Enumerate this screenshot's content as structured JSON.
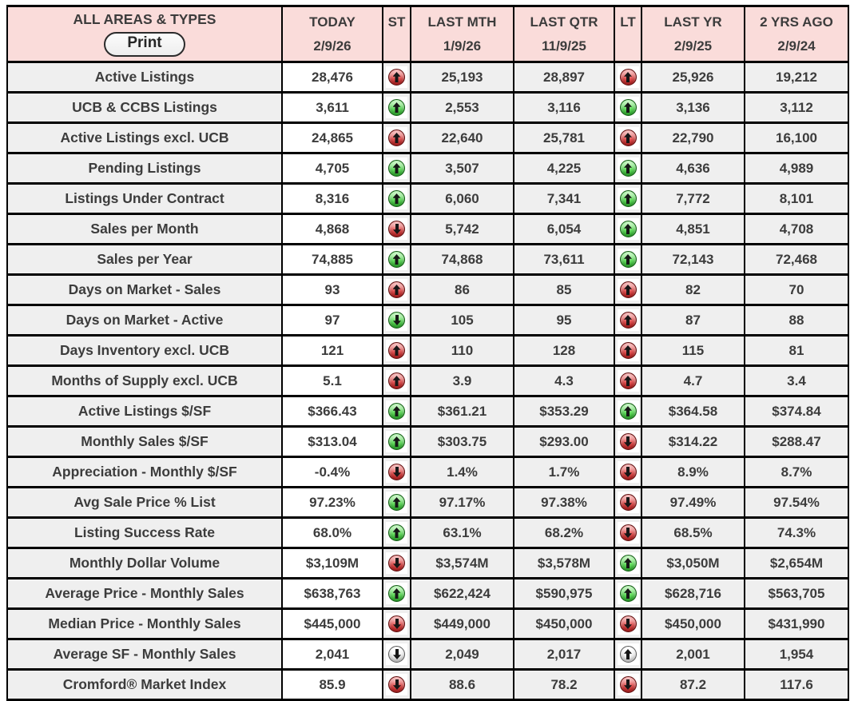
{
  "header": {
    "area_label": "ALL AREAS & TYPES",
    "print_label": "Print",
    "columns": [
      {
        "label": "TODAY",
        "date": "2/9/26"
      },
      {
        "label": "ST",
        "date": ""
      },
      {
        "label": "LAST MTH",
        "date": "1/9/26"
      },
      {
        "label": "LAST QTR",
        "date": "11/9/25"
      },
      {
        "label": "LT",
        "date": ""
      },
      {
        "label": "LAST YR",
        "date": "2/9/25"
      },
      {
        "label": "2 YRS AGO",
        "date": "2/9/24"
      }
    ]
  },
  "colors": {
    "header_pink": "#fadcda",
    "cell_gray": "#efefef",
    "today_white": "#ffffff",
    "border_black": "#000000",
    "text_dark": "#3c3c3c",
    "arrow_up_bad_red": "#cd2c2c",
    "arrow_up_good_green": "#3ec43c",
    "arrow_neutral_white": "#f2f2f2"
  },
  "rows": [
    {
      "label": "Active Listings",
      "today": "28,476",
      "st": "red-up",
      "last_mth": "25,193",
      "last_qtr": "28,897",
      "lt": "red-up",
      "last_yr": "25,926",
      "two_yrs_ago": "19,212"
    },
    {
      "label": "UCB & CCBS Listings",
      "today": "3,611",
      "st": "green-up",
      "last_mth": "2,553",
      "last_qtr": "3,116",
      "lt": "green-up",
      "last_yr": "3,136",
      "two_yrs_ago": "3,112"
    },
    {
      "label": "Active Listings excl. UCB",
      "today": "24,865",
      "st": "red-up",
      "last_mth": "22,640",
      "last_qtr": "25,781",
      "lt": "red-up",
      "last_yr": "22,790",
      "two_yrs_ago": "16,100"
    },
    {
      "label": "Pending Listings",
      "today": "4,705",
      "st": "green-up",
      "last_mth": "3,507",
      "last_qtr": "4,225",
      "lt": "green-up",
      "last_yr": "4,636",
      "two_yrs_ago": "4,989"
    },
    {
      "label": "Listings Under Contract",
      "today": "8,316",
      "st": "green-up",
      "last_mth": "6,060",
      "last_qtr": "7,341",
      "lt": "green-up",
      "last_yr": "7,772",
      "two_yrs_ago": "8,101"
    },
    {
      "label": "Sales per Month",
      "today": "4,868",
      "st": "red-down",
      "last_mth": "5,742",
      "last_qtr": "6,054",
      "lt": "green-up",
      "last_yr": "4,851",
      "two_yrs_ago": "4,708"
    },
    {
      "label": "Sales per Year",
      "today": "74,885",
      "st": "green-up",
      "last_mth": "74,868",
      "last_qtr": "73,611",
      "lt": "green-up",
      "last_yr": "72,143",
      "two_yrs_ago": "72,468"
    },
    {
      "label": "Days on Market - Sales",
      "today": "93",
      "st": "red-up",
      "last_mth": "86",
      "last_qtr": "85",
      "lt": "red-up",
      "last_yr": "82",
      "two_yrs_ago": "70"
    },
    {
      "label": "Days on Market - Active",
      "today": "97",
      "st": "green-down",
      "last_mth": "105",
      "last_qtr": "95",
      "lt": "red-up",
      "last_yr": "87",
      "two_yrs_ago": "88"
    },
    {
      "label": "Days Inventory excl. UCB",
      "today": "121",
      "st": "red-up",
      "last_mth": "110",
      "last_qtr": "128",
      "lt": "red-up",
      "last_yr": "115",
      "two_yrs_ago": "81"
    },
    {
      "label": "Months of Supply excl. UCB",
      "today": "5.1",
      "st": "red-up",
      "last_mth": "3.9",
      "last_qtr": "4.3",
      "lt": "red-up",
      "last_yr": "4.7",
      "two_yrs_ago": "3.4"
    },
    {
      "label": "Active Listings $/SF",
      "today": "$366.43",
      "st": "green-up",
      "last_mth": "$361.21",
      "last_qtr": "$353.29",
      "lt": "green-up",
      "last_yr": "$364.58",
      "two_yrs_ago": "$374.84"
    },
    {
      "label": "Monthly Sales $/SF",
      "today": "$313.04",
      "st": "green-up",
      "last_mth": "$303.75",
      "last_qtr": "$293.00",
      "lt": "red-down",
      "last_yr": "$314.22",
      "two_yrs_ago": "$288.47"
    },
    {
      "label": "Appreciation - Monthly $/SF",
      "today": "-0.4%",
      "st": "red-down",
      "last_mth": "1.4%",
      "last_qtr": "1.7%",
      "lt": "red-down",
      "last_yr": "8.9%",
      "two_yrs_ago": "8.7%"
    },
    {
      "label": "Avg Sale Price % List",
      "today": "97.23%",
      "st": "green-up",
      "last_mth": "97.17%",
      "last_qtr": "97.38%",
      "lt": "red-down",
      "last_yr": "97.49%",
      "two_yrs_ago": "97.54%"
    },
    {
      "label": "Listing Success Rate",
      "today": "68.0%",
      "st": "green-up",
      "last_mth": "63.1%",
      "last_qtr": "68.2%",
      "lt": "red-down",
      "last_yr": "68.5%",
      "two_yrs_ago": "74.3%"
    },
    {
      "label": "Monthly Dollar Volume",
      "today": "$3,109M",
      "st": "red-down",
      "last_mth": "$3,574M",
      "last_qtr": "$3,578M",
      "lt": "green-up",
      "last_yr": "$3,050M",
      "two_yrs_ago": "$2,654M"
    },
    {
      "label": "Average Price - Monthly Sales",
      "today": "$638,763",
      "st": "green-up",
      "last_mth": "$622,424",
      "last_qtr": "$590,975",
      "lt": "green-up",
      "last_yr": "$628,716",
      "two_yrs_ago": "$563,705"
    },
    {
      "label": "Median Price - Monthly Sales",
      "today": "$445,000",
      "st": "red-down",
      "last_mth": "$449,000",
      "last_qtr": "$450,000",
      "lt": "red-down",
      "last_yr": "$450,000",
      "two_yrs_ago": "$431,990"
    },
    {
      "label": "Average SF - Monthly Sales",
      "today": "2,041",
      "st": "white-down",
      "last_mth": "2,049",
      "last_qtr": "2,017",
      "lt": "white-up",
      "last_yr": "2,001",
      "two_yrs_ago": "1,954"
    },
    {
      "label": "Cromford® Market Index",
      "today": "85.9",
      "st": "red-down",
      "last_mth": "88.6",
      "last_qtr": "78.2",
      "lt": "red-down",
      "last_yr": "87.2",
      "two_yrs_ago": "117.6"
    }
  ]
}
